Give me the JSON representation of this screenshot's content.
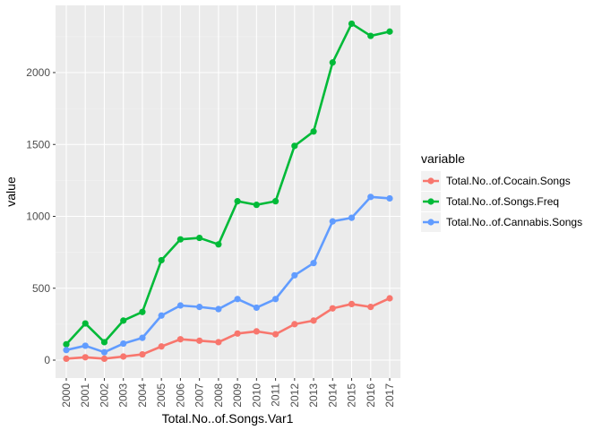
{
  "chart_data": {
    "type": "line",
    "xlabel": "Total.No..of.Songs.Var1",
    "ylabel": "value",
    "categories": [
      "2000",
      "2001",
      "2002",
      "2003",
      "2004",
      "2005",
      "2006",
      "2007",
      "2008",
      "2009",
      "2010",
      "2011",
      "2012",
      "2013",
      "2014",
      "2015",
      "2016",
      "2017"
    ],
    "ylim": [
      -130,
      2430
    ],
    "yticks": [
      0,
      500,
      1000,
      1500,
      2000
    ],
    "grid": true,
    "legend_title": "variable",
    "legend_position": "right",
    "series": [
      {
        "name": "Total.No..of.Cocain.Songs",
        "color": "#F8766D",
        "values": [
          10,
          20,
          10,
          25,
          40,
          95,
          145,
          135,
          125,
          185,
          200,
          180,
          250,
          275,
          360,
          390,
          370,
          430
        ]
      },
      {
        "name": "Total.No..of.Songs.Freq",
        "color": "#00BA38",
        "values": [
          110,
          255,
          125,
          275,
          335,
          695,
          840,
          850,
          805,
          1105,
          1080,
          1105,
          1490,
          1590,
          2070,
          2340,
          2255,
          2285
        ]
      },
      {
        "name": "Total.No..of.Cannabis.Songs",
        "color": "#619CFF",
        "values": [
          70,
          100,
          55,
          115,
          155,
          310,
          380,
          370,
          355,
          425,
          365,
          425,
          590,
          675,
          965,
          990,
          1135,
          1125
        ]
      }
    ]
  }
}
